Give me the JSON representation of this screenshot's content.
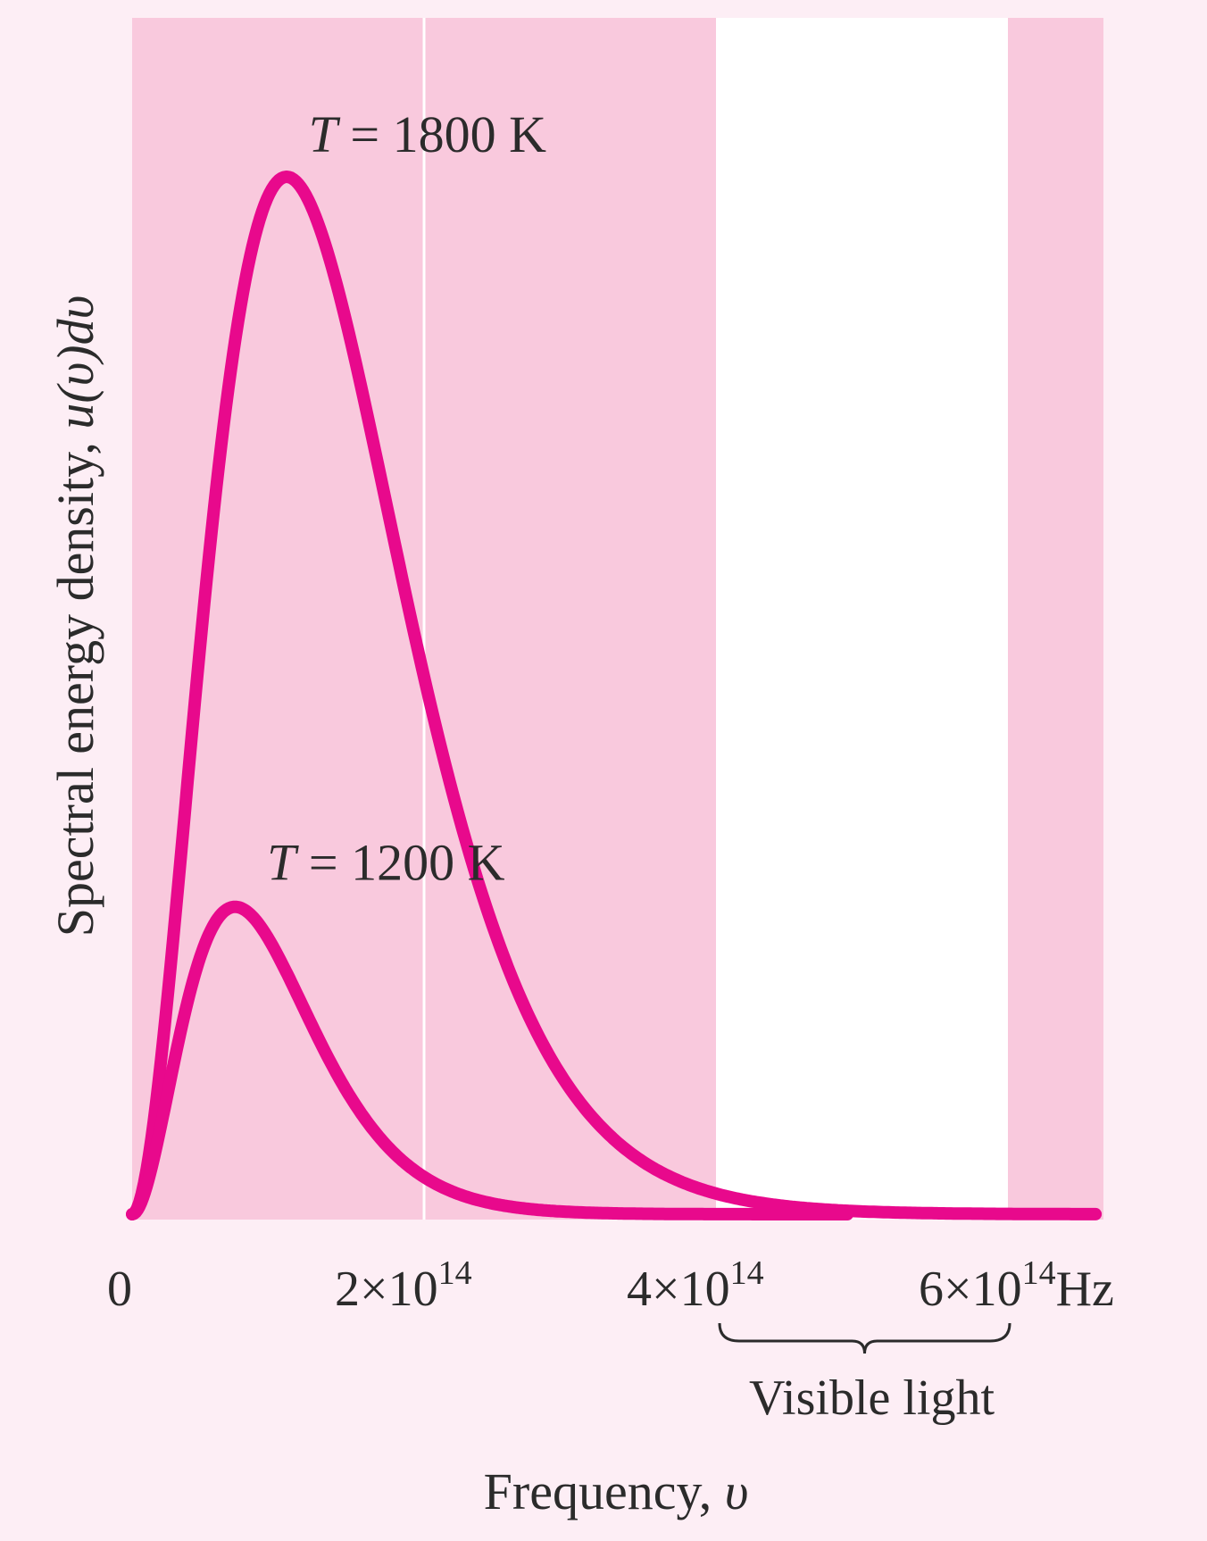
{
  "chart_data": {
    "type": "line",
    "title": "",
    "xlabel_text": "Frequency, ",
    "xlabel_symbol": "υ",
    "ylabel_text": "Spectral energy density, ",
    "ylabel_symbol": "u(υ)dυ",
    "x_unit": "Hz",
    "xlim": [
      0,
      660000000000000.0
    ],
    "ticks": [
      {
        "value": 0,
        "label": "0",
        "base": "",
        "exp": ""
      },
      {
        "value": 200000000000000.0,
        "label": "",
        "base": "2×10",
        "exp": "14"
      },
      {
        "value": 400000000000000.0,
        "label": "",
        "base": "4×10",
        "exp": "14"
      },
      {
        "value": 600000000000000.0,
        "label": "",
        "base": "6×10",
        "exp": "14"
      }
    ],
    "visible_band": {
      "label": "Visible light",
      "x_start": 400000000000000.0,
      "x_end": 600000000000000.0
    },
    "grid_x": [
      200000000000000.0
    ],
    "series": [
      {
        "name_var": "T",
        "name_rest": " = 1800 K",
        "temperature_K": 1800,
        "x_max": 660000000000000.0
      },
      {
        "name_var": "T",
        "name_rest": " = 1200 K",
        "temperature_K": 1200,
        "x_max": 490000000000000.0
      }
    ],
    "colors": {
      "curve": "#e8098c",
      "band": "#f9c9dd",
      "visible": "#ffffff",
      "background": "#fdeef5",
      "text": "#2b2b2b"
    }
  }
}
